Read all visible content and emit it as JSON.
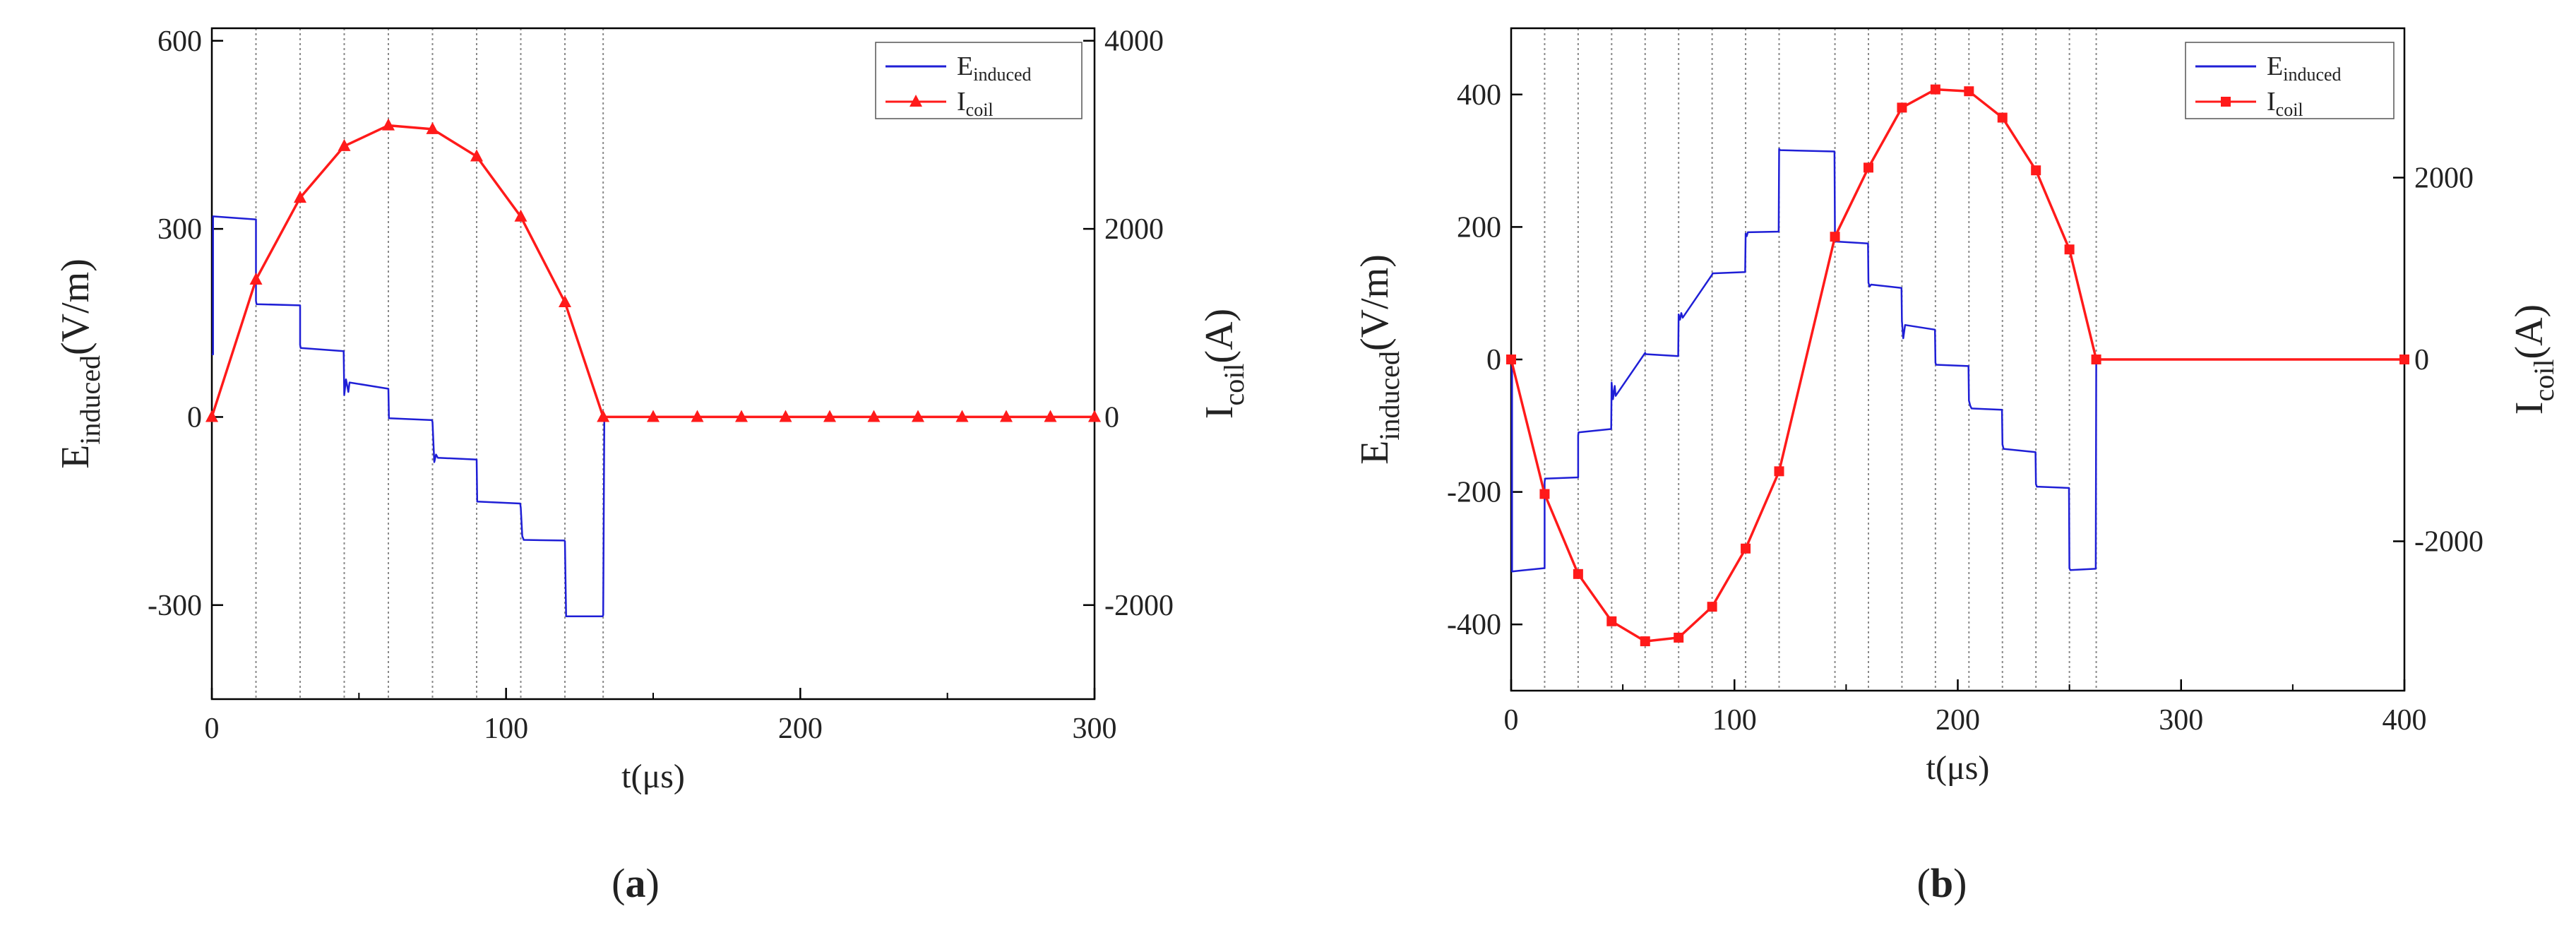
{
  "chart_data": [
    {
      "type": "line",
      "panel_label_prefix": "(",
      "panel_label_letter": "a",
      "panel_label_suffix": ")",
      "xlabel": "t(μs)",
      "ylabel_left": {
        "base": "E",
        "sub": "induced",
        "unit": "(V/m)"
      },
      "ylabel_right": {
        "base": "I",
        "sub": "coil",
        "unit": "(A)"
      },
      "xlim": [
        0,
        300
      ],
      "ylim_left": [
        -450,
        620
      ],
      "ylim_right": [
        -3000,
        4133
      ],
      "xticks": [
        0,
        100,
        200,
        300
      ],
      "yticks_left": [
        -300,
        0,
        300,
        600
      ],
      "yticks_right": [
        -2000,
        0,
        2000,
        4000
      ],
      "vlines": [
        15,
        30,
        45,
        60,
        75,
        90,
        105,
        120,
        133
      ],
      "legend_position": "top-right",
      "series": [
        {
          "name": "E_induced",
          "label_base": "E",
          "label_sub": "induced",
          "axis": "left",
          "color": "#1f1fd6",
          "marker": "none",
          "x": [
            0,
            0.4,
            0.4,
            15,
            15,
            15.2,
            30,
            30,
            30.2,
            44.8,
            45,
            45.6,
            46.4,
            46.8,
            60,
            60.2,
            74.8,
            75,
            75.6,
            76.2,
            76.8,
            90,
            90.2,
            104.8,
            105,
            105.5,
            106,
            119.8,
            120,
            120.4,
            132.8,
            133,
            133.4,
            300
          ],
          "y": [
            100,
            100,
            320,
            315,
            185,
            180,
            178,
            115,
            110,
            105,
            35,
            60,
            40,
            55,
            45,
            -2,
            -5,
            -8,
            -72,
            -60,
            -65,
            -68,
            -135,
            -138,
            -145,
            -190,
            -196,
            -197,
            -198,
            -318,
            -318,
            -316,
            0,
            0
          ]
        },
        {
          "name": "I_coil",
          "label_base": "I",
          "label_sub": "coil",
          "axis": "right",
          "color": "#ff1a1a",
          "marker": "triangle",
          "x": [
            0,
            15,
            30,
            45,
            60,
            75,
            90,
            105,
            120,
            133,
            150,
            165,
            180,
            195,
            210,
            225,
            240,
            255,
            270,
            285,
            300
          ],
          "y": [
            0,
            1460,
            2330,
            2880,
            3100,
            3060,
            2770,
            2130,
            1220,
            0,
            0,
            0,
            0,
            0,
            0,
            0,
            0,
            0,
            0,
            0,
            0
          ]
        }
      ]
    },
    {
      "type": "line",
      "panel_label_prefix": "(",
      "panel_label_letter": "b",
      "panel_label_suffix": ")",
      "xlabel": "t(μs)",
      "ylabel_left": {
        "base": "E",
        "sub": "induced",
        "unit": "(V/m)"
      },
      "ylabel_right": {
        "base": "I",
        "sub": "coil",
        "unit": "(A)"
      },
      "xlim": [
        0,
        400
      ],
      "ylim_left": [
        -500,
        500
      ],
      "ylim_right": [
        -3643,
        3643
      ],
      "xticks": [
        0,
        100,
        200,
        300,
        400
      ],
      "yticks_left": [
        -400,
        -200,
        0,
        200,
        400
      ],
      "yticks_right": [
        -2000,
        0,
        2000
      ],
      "vlines": [
        15,
        30,
        45,
        60,
        75,
        90,
        105,
        120,
        145,
        160,
        175,
        190,
        205,
        220,
        235,
        250,
        262
      ],
      "legend_position": "top-right",
      "series": [
        {
          "name": "E_induced",
          "label_base": "E",
          "label_sub": "induced",
          "axis": "left",
          "color": "#1f1fd6",
          "marker": "none",
          "x": [
            0,
            0.4,
            0.4,
            15,
            15,
            15.2,
            30,
            30,
            30.2,
            44.8,
            45,
            45.6,
            46.4,
            46.8,
            60,
            60.2,
            74.8,
            75,
            75.6,
            76.2,
            76.8,
            90,
            90.2,
            104.8,
            105,
            105.5,
            106,
            119.8,
            120,
            120.4,
            144.8,
            145,
            145.4,
            159.8,
            160,
            160.5,
            161.2,
            174.8,
            175,
            175.6,
            176.4,
            189.8,
            190,
            190.3,
            204.8,
            205,
            205.6,
            206.2,
            219.8,
            220,
            220.5,
            234.8,
            235,
            235.4,
            249.8,
            250,
            250.4,
            261.8,
            262,
            262.3,
            400
          ],
          "y": [
            0,
            0,
            -320,
            -315,
            -185,
            -180,
            -178,
            -115,
            -110,
            -105,
            -35,
            -60,
            -40,
            -55,
            10,
            8,
            5,
            68,
            60,
            70,
            63,
            128,
            130,
            132,
            190,
            186,
            192,
            193,
            318,
            316,
            314,
            182,
            178,
            175,
            116,
            110,
            113,
            108,
            58,
            32,
            52,
            45,
            -5,
            -8,
            -10,
            -62,
            -70,
            -74,
            -76,
            -128,
            -135,
            -140,
            -188,
            -192,
            -194,
            -315,
            -318,
            -316,
            0,
            0,
            0
          ]
        },
        {
          "name": "I_coil",
          "label_base": "I",
          "label_sub": "coil",
          "axis": "right",
          "color": "#ff1a1a",
          "marker": "square",
          "x": [
            0,
            15,
            30,
            45,
            60,
            75,
            90,
            105,
            120,
            145,
            160,
            175,
            190,
            205,
            220,
            235,
            250,
            262,
            400
          ],
          "y": [
            0,
            -1480,
            -2360,
            -2880,
            -3100,
            -3060,
            -2720,
            -2080,
            -1230,
            1350,
            2110,
            2770,
            2970,
            2950,
            2660,
            2080,
            1210,
            0,
            0
          ]
        }
      ]
    }
  ]
}
